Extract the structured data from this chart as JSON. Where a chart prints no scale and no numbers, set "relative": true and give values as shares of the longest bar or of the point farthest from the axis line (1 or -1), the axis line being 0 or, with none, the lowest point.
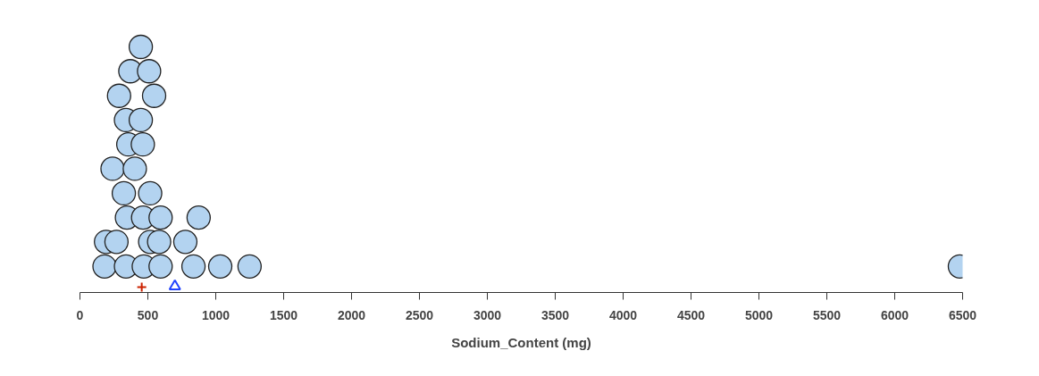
{
  "chart_data": {
    "type": "scatter",
    "relative": true,
    "xlabel": "Sodium_Content (mg)",
    "xlim": [
      0,
      6500
    ],
    "xticks": [
      0,
      500,
      1000,
      1500,
      2000,
      2500,
      3000,
      3500,
      4000,
      4500,
      5000,
      5500,
      6000,
      6500
    ],
    "tick_labels": "x",
    "grid": false,
    "marker": "circle",
    "series": [
      {
        "color": "#b3d3f0",
        "x": [
          181,
          339,
          470,
          594,
          836,
          1033,
          1249,
          6480,
          192,
          269,
          517,
          583,
          776,
          346,
          465,
          594,
          874,
          323,
          517,
          240,
          404,
          356,
          463,
          339,
          448,
          288,
          546,
          371,
          509,
          448
        ],
        "values": [
          0.106,
          0.106,
          0.106,
          0.106,
          0.106,
          0.106,
          0.106,
          0.106,
          0.206,
          0.206,
          0.206,
          0.206,
          0.206,
          0.305,
          0.305,
          0.305,
          0.305,
          0.404,
          0.404,
          0.504,
          0.504,
          0.603,
          0.603,
          0.702,
          0.702,
          0.801,
          0.801,
          0.901,
          0.901,
          1.0
        ]
      },
      {
        "color": "#cc2200",
        "marker": "cross",
        "x": [
          455
        ],
        "values": [
          0.022
        ]
      },
      {
        "color": "#2244ff",
        "marker": "triangle",
        "x": [
          699
        ],
        "values": [
          0.025
        ]
      }
    ]
  }
}
